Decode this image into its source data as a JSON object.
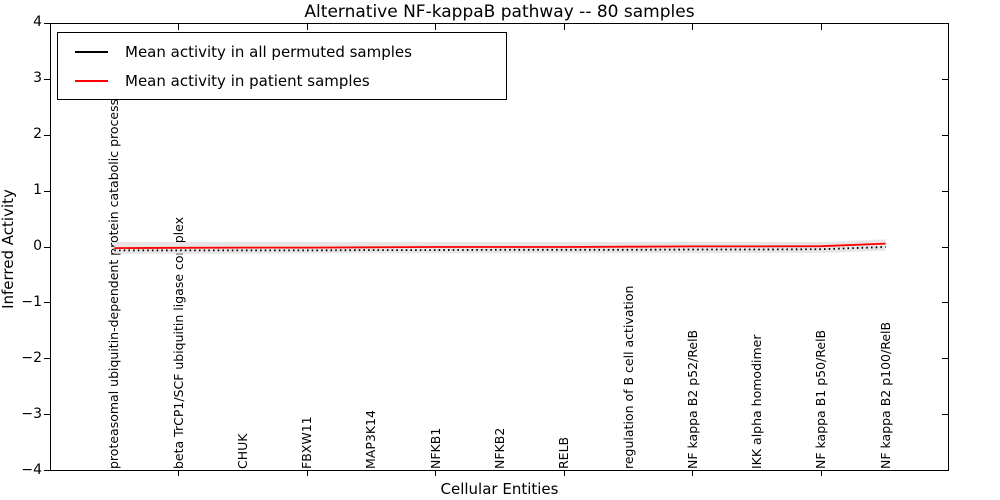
{
  "chart_data": {
    "type": "line",
    "title": "Alternative NF-kappaB pathway -- 80 samples",
    "xlabel": "Cellular Entities",
    "ylabel": "Inferred Activity",
    "ylim": [
      -4,
      4
    ],
    "yticks": [
      4,
      3,
      2,
      1,
      0,
      -1,
      -2,
      -3,
      -4
    ],
    "grid": false,
    "legend_position": "upper left",
    "categories": [
      "proteasomal ubiquitin-dependent protein catabolic process",
      "beta TrCP1/SCF ubiquitin ligase complex",
      "CHUK",
      "FBXW11",
      "MAP3K14",
      "NFKB1",
      "NFKB2",
      "RELB",
      "regulation of B cell activation",
      "NF kappa B2 p52/RelB",
      "IKK alpha homodimer",
      "NF kappa B1 p50/RelB",
      "NF kappa B2 p100/RelB"
    ],
    "series": [
      {
        "name": "Mean activity in all permuted samples",
        "color": "#000000",
        "style": "dotted",
        "values": [
          -0.06,
          -0.06,
          -0.06,
          -0.06,
          -0.055,
          -0.055,
          -0.05,
          -0.05,
          -0.05,
          -0.045,
          -0.045,
          -0.04,
          0.0
        ]
      },
      {
        "name": "Mean activity in patient samples",
        "color": "#ff0000",
        "style": "solid",
        "values": [
          -0.02,
          -0.015,
          -0.01,
          -0.01,
          -0.005,
          0.0,
          0.0,
          0.0,
          0.005,
          0.01,
          0.01,
          0.015,
          0.06
        ]
      }
    ],
    "band": {
      "color": "#e6e6e6",
      "upper": [
        0.09,
        0.09,
        0.09,
        0.09,
        0.09,
        0.09,
        0.09,
        0.09,
        0.09,
        0.09,
        0.09,
        0.09,
        0.135
      ],
      "lower": [
        -0.12,
        -0.12,
        -0.12,
        -0.115,
        -0.115,
        -0.115,
        -0.11,
        -0.11,
        -0.11,
        -0.11,
        -0.105,
        -0.105,
        -0.065
      ]
    }
  }
}
